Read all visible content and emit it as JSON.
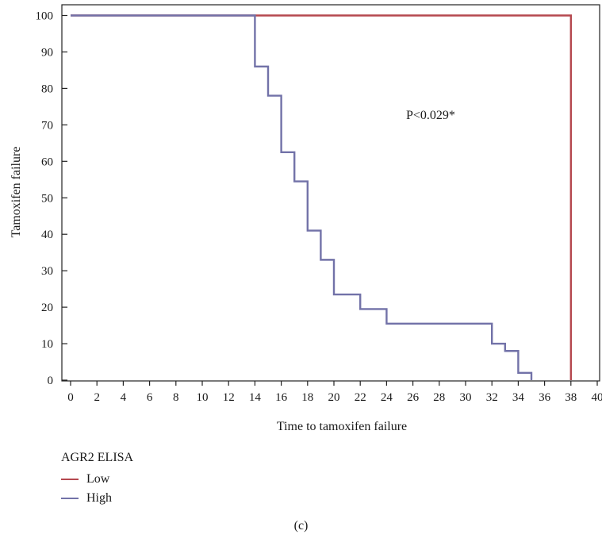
{
  "chart_data": {
    "type": "line",
    "xlabel": "Time to tamoxifen failure",
    "ylabel": "Tamoxifen failure",
    "xlim": [
      0,
      40
    ],
    "ylim": [
      0,
      100
    ],
    "xticks": [
      0,
      2,
      4,
      6,
      8,
      10,
      12,
      14,
      16,
      18,
      20,
      22,
      24,
      26,
      28,
      30,
      32,
      34,
      36,
      38,
      40
    ],
    "yticks": [
      0,
      10,
      20,
      30,
      40,
      50,
      60,
      70,
      80,
      90,
      100
    ],
    "grid": false,
    "legend_position": "bottom-left",
    "legend_title": "AGR2 ELISA",
    "annotation": "P<0.029*",
    "panel_label": "(c)",
    "series": [
      {
        "name": "Low",
        "color": "#b5484f",
        "step": true,
        "x": [
          0,
          38,
          38
        ],
        "y": [
          100,
          100,
          0
        ]
      },
      {
        "name": "High",
        "color": "#7272a8",
        "step": true,
        "x": [
          0,
          14,
          15,
          16,
          17,
          18,
          19,
          20,
          22,
          24,
          32,
          33,
          34,
          35
        ],
        "y": [
          100,
          86,
          78,
          62.5,
          54.5,
          41,
          33,
          23.5,
          19.5,
          15.5,
          10,
          8,
          2,
          0
        ]
      }
    ]
  }
}
